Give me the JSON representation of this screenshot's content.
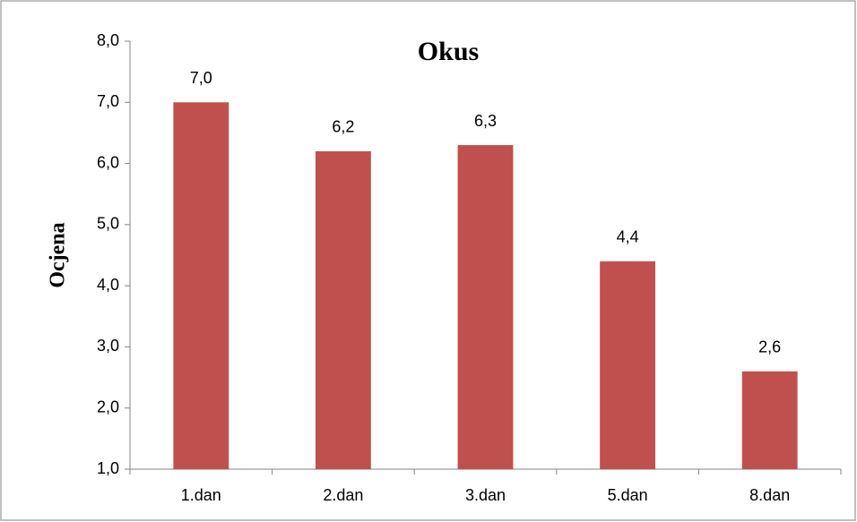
{
  "chart_data": {
    "type": "bar",
    "title": "Okus",
    "y_label": "Ocjena",
    "categories": [
      "1.dan",
      "2.dan",
      "3.dan",
      "5.dan",
      "8.dan"
    ],
    "values": [
      7.0,
      6.2,
      6.3,
      4.4,
      2.6
    ],
    "value_labels": [
      "7,0",
      "6,2",
      "6,3",
      "4,4",
      "2,6"
    ],
    "color": "#c0504d",
    "ylim": [
      1,
      8
    ],
    "yticks": [
      {
        "value": 1,
        "label": "1,0"
      },
      {
        "value": 2,
        "label": "2,0"
      },
      {
        "value": 3,
        "label": "3,0"
      },
      {
        "value": 4,
        "label": "4,0"
      },
      {
        "value": 5,
        "label": "5,0"
      },
      {
        "value": 6,
        "label": "6,0"
      },
      {
        "value": 7,
        "label": "7,0"
      },
      {
        "value": 8,
        "label": "8,0"
      }
    ],
    "grid": false
  }
}
